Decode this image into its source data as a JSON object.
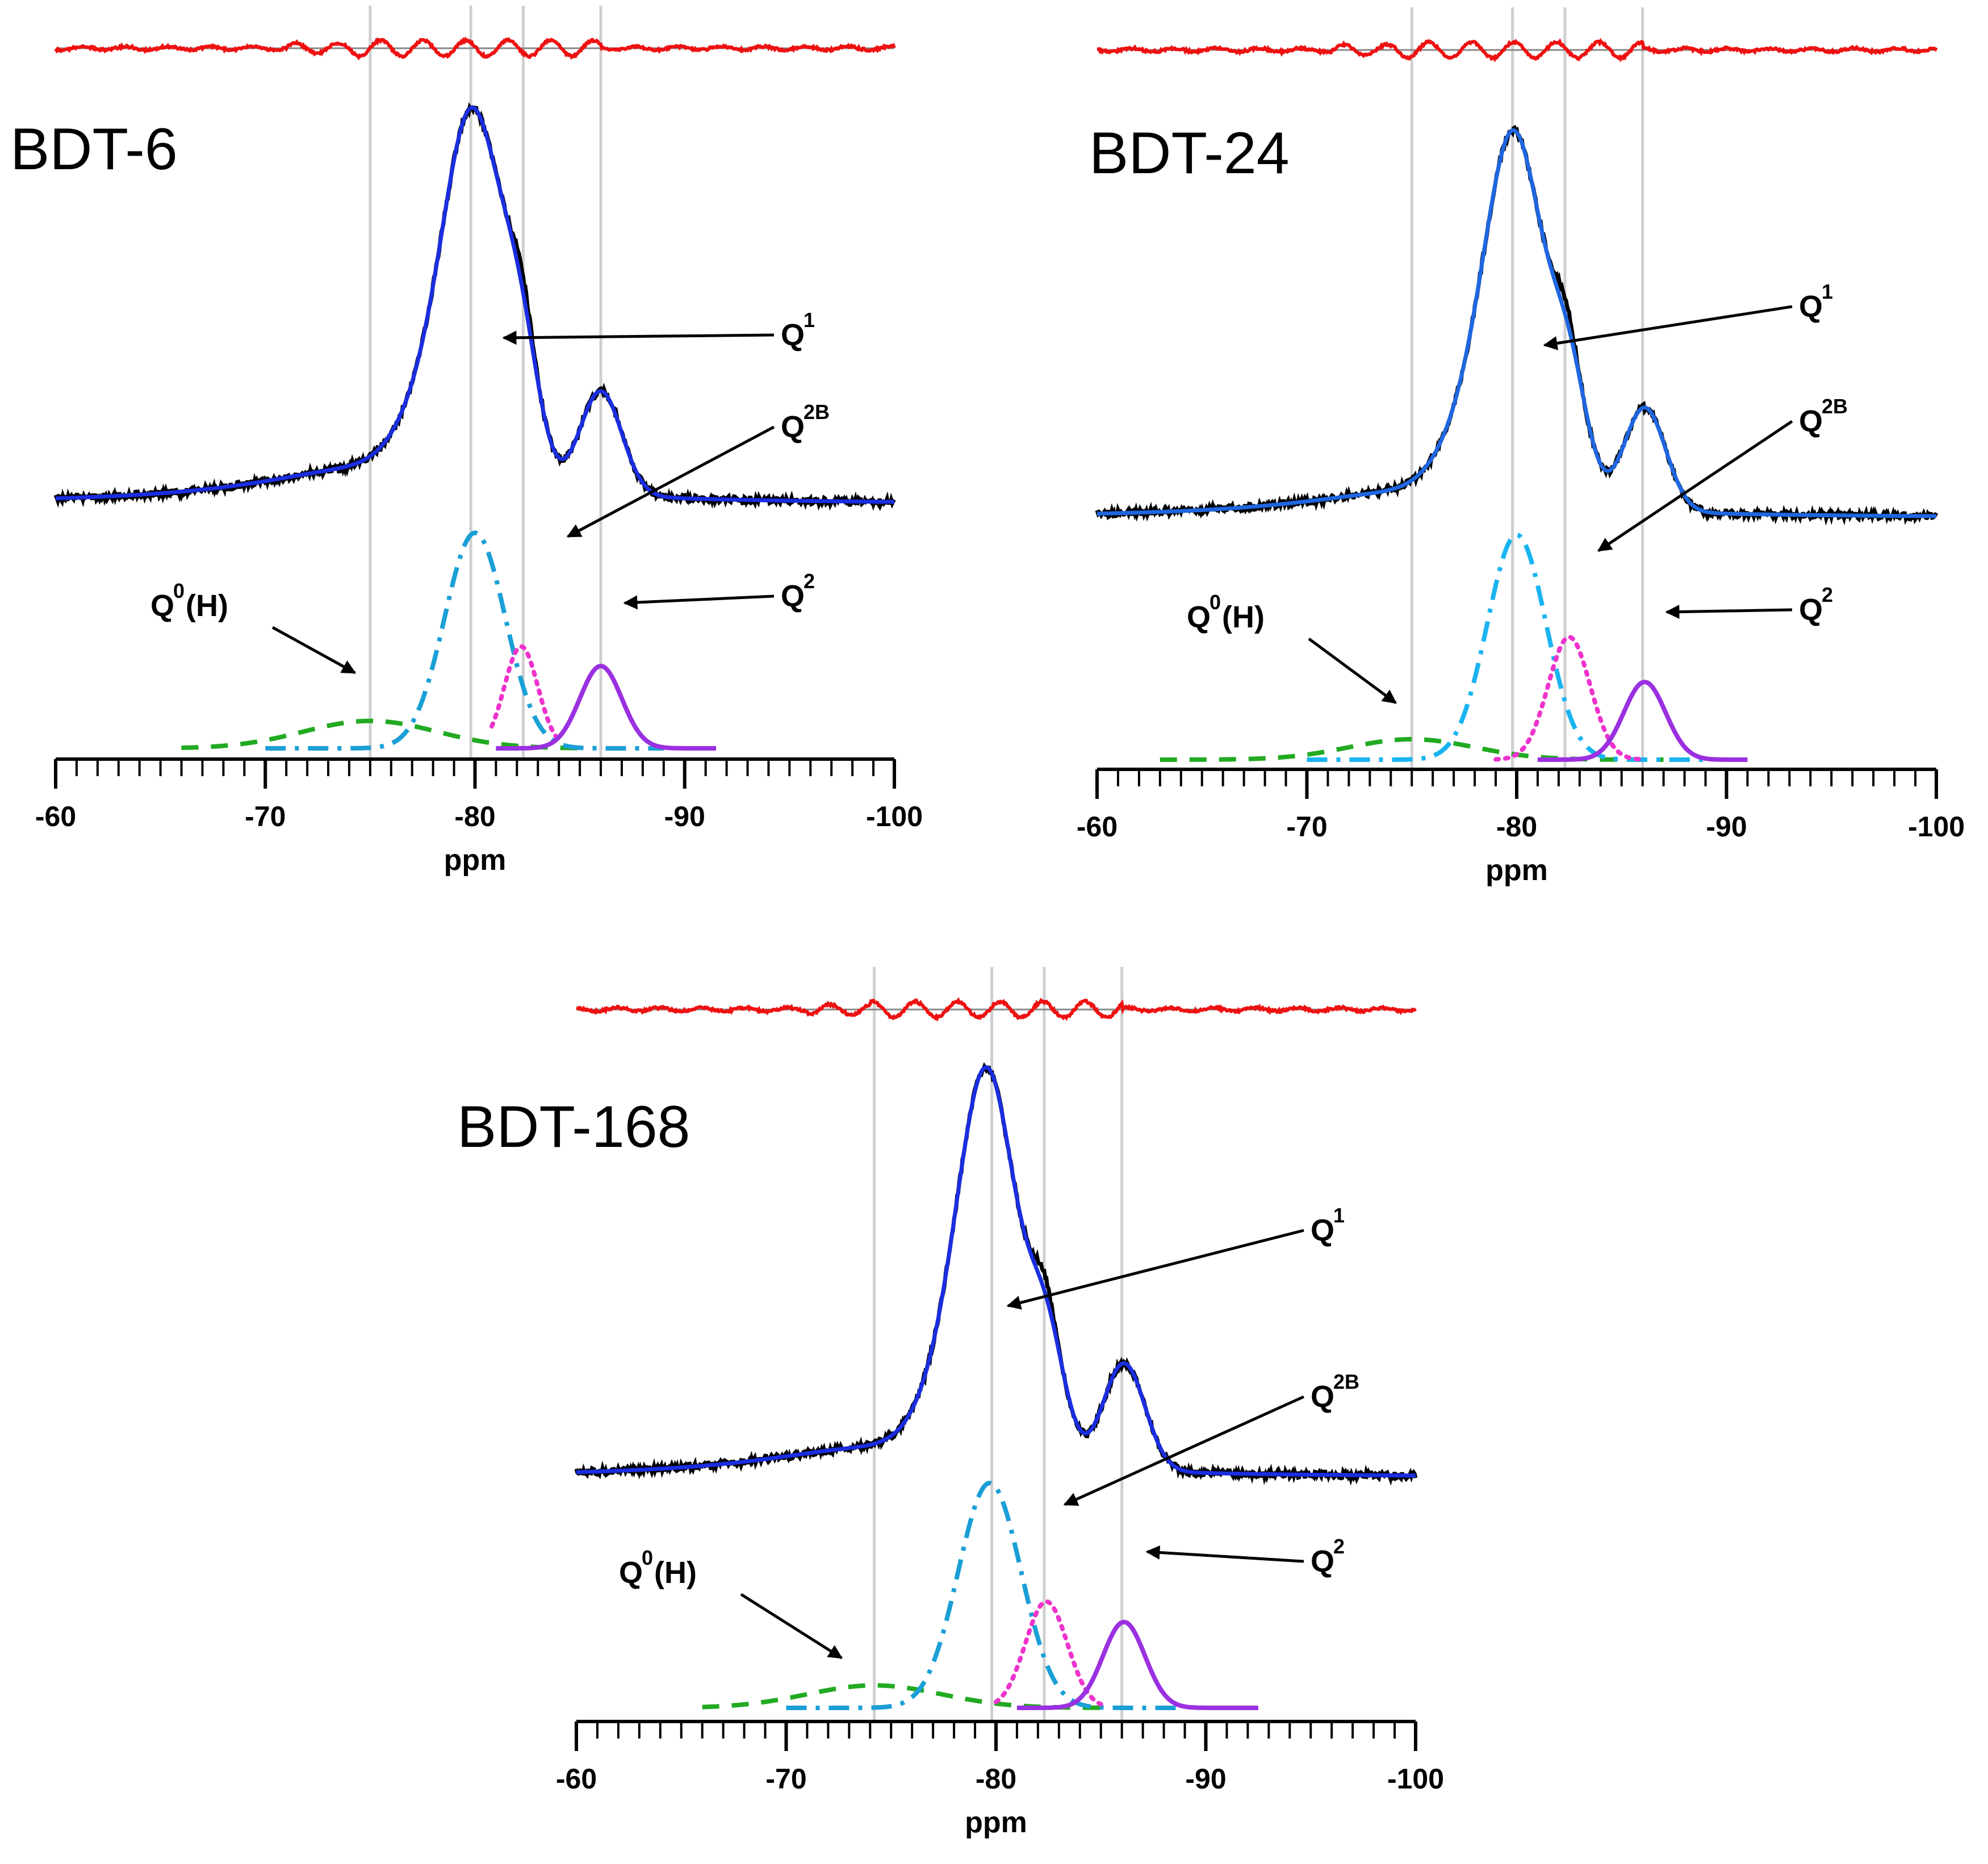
{
  "chart_data": [
    {
      "type": "line",
      "title": "BDT-6",
      "xlabel": "ppm",
      "xlim": [
        -60,
        -100
      ],
      "xticks": [
        "-60",
        "-70",
        "-80",
        "-90",
        "-100"
      ],
      "reference_lines_ppm": [
        -75,
        -79.8,
        -82.3,
        -86
      ],
      "components": [
        {
          "name": "Q0(H)",
          "base": "Q",
          "sup": "0",
          "suffix": "(H)",
          "center": -75.0,
          "height": 0.14,
          "width": 3.2,
          "range": [
            -66,
            -85
          ],
          "style": "dashed",
          "color": "#22aa22"
        },
        {
          "name": "Q1",
          "base": "Q",
          "sup": "1",
          "suffix": "",
          "center": -80.0,
          "height": 1.1,
          "width": 1.45,
          "range": [
            -70,
            -89
          ],
          "style": "dashdot",
          "color": "#1a9fd6"
        },
        {
          "name": "Q2B",
          "base": "Q",
          "sup": "2B",
          "suffix": "",
          "center": -82.2,
          "height": 0.52,
          "width": 0.8,
          "range": [
            -80.8,
            -84
          ],
          "style": "dotted",
          "color": "#ee33cc"
        },
        {
          "name": "Q2",
          "base": "Q",
          "sup": "2",
          "suffix": "",
          "center": -86.0,
          "height": 0.42,
          "width": 1.0,
          "range": [
            -81,
            -91.5
          ],
          "style": "solid",
          "color": "#9b30e0"
        }
      ],
      "colors": {
        "experimental": "#000000",
        "fit": "#1a2ee0",
        "residual": "#ee1111"
      }
    },
    {
      "type": "line",
      "title": "BDT-24",
      "xlabel": "ppm",
      "xlim": [
        -60,
        -100
      ],
      "xticks": [
        "-60",
        "-70",
        "-80",
        "-90",
        "-100"
      ],
      "reference_lines_ppm": [
        -75,
        -79.8,
        -82.3,
        -86
      ],
      "components": [
        {
          "name": "Q0(H)",
          "base": "Q",
          "sup": "0",
          "suffix": "(H)",
          "center": -75.0,
          "height": 0.1,
          "width": 3.0,
          "range": [
            -63,
            -87
          ],
          "style": "dashed",
          "color": "#22aa22"
        },
        {
          "name": "Q1",
          "base": "Q",
          "sup": "1",
          "suffix": "",
          "center": -80.0,
          "height": 1.1,
          "width": 1.4,
          "range": [
            -70,
            -89
          ],
          "style": "dashdot",
          "color": "#19b4f0"
        },
        {
          "name": "Q2B",
          "base": "Q",
          "sup": "2B",
          "suffix": "",
          "center": -82.5,
          "height": 0.6,
          "width": 1.0,
          "range": [
            -79,
            -86
          ],
          "style": "dotted",
          "color": "#ee33cc"
        },
        {
          "name": "Q2",
          "base": "Q",
          "sup": "2",
          "suffix": "",
          "center": -86.1,
          "height": 0.38,
          "width": 1.0,
          "range": [
            -81,
            -91
          ],
          "style": "solid",
          "color": "#9b30e0"
        }
      ],
      "colors": {
        "experimental": "#000000",
        "fit": "#1f66e0",
        "residual": "#ee1111"
      }
    },
    {
      "type": "line",
      "title": "BDT-168",
      "xlabel": "ppm",
      "xlim": [
        -60,
        -100
      ],
      "xticks": [
        "-60",
        "-70",
        "-80",
        "-90",
        "-100"
      ],
      "reference_lines_ppm": [
        -74.2,
        -79.8,
        -82.3,
        -86
      ],
      "components": [
        {
          "name": "Q0(H)",
          "base": "Q",
          "sup": "0",
          "suffix": "(H)",
          "center": -74.2,
          "height": 0.11,
          "width": 3.2,
          "range": [
            -66,
            -85
          ],
          "style": "dashed",
          "color": "#22aa22"
        },
        {
          "name": "Q1",
          "base": "Q",
          "sup": "1",
          "suffix": "",
          "center": -79.7,
          "height": 1.1,
          "width": 1.5,
          "range": [
            -70,
            -89
          ],
          "style": "dashdot",
          "color": "#1a9fd6"
        },
        {
          "name": "Q2B",
          "base": "Q",
          "sup": "2B",
          "suffix": "",
          "center": -82.4,
          "height": 0.52,
          "width": 1.0,
          "range": [
            -80,
            -85
          ],
          "style": "dotted",
          "color": "#ee33cc"
        },
        {
          "name": "Q2",
          "base": "Q",
          "sup": "2",
          "suffix": "",
          "center": -86.1,
          "height": 0.42,
          "width": 1.0,
          "range": [
            -81,
            -92.5
          ],
          "style": "solid",
          "color": "#9b30e0"
        }
      ],
      "colors": {
        "experimental": "#000000",
        "fit": "#1a2ee0",
        "residual": "#ee1111"
      }
    }
  ]
}
